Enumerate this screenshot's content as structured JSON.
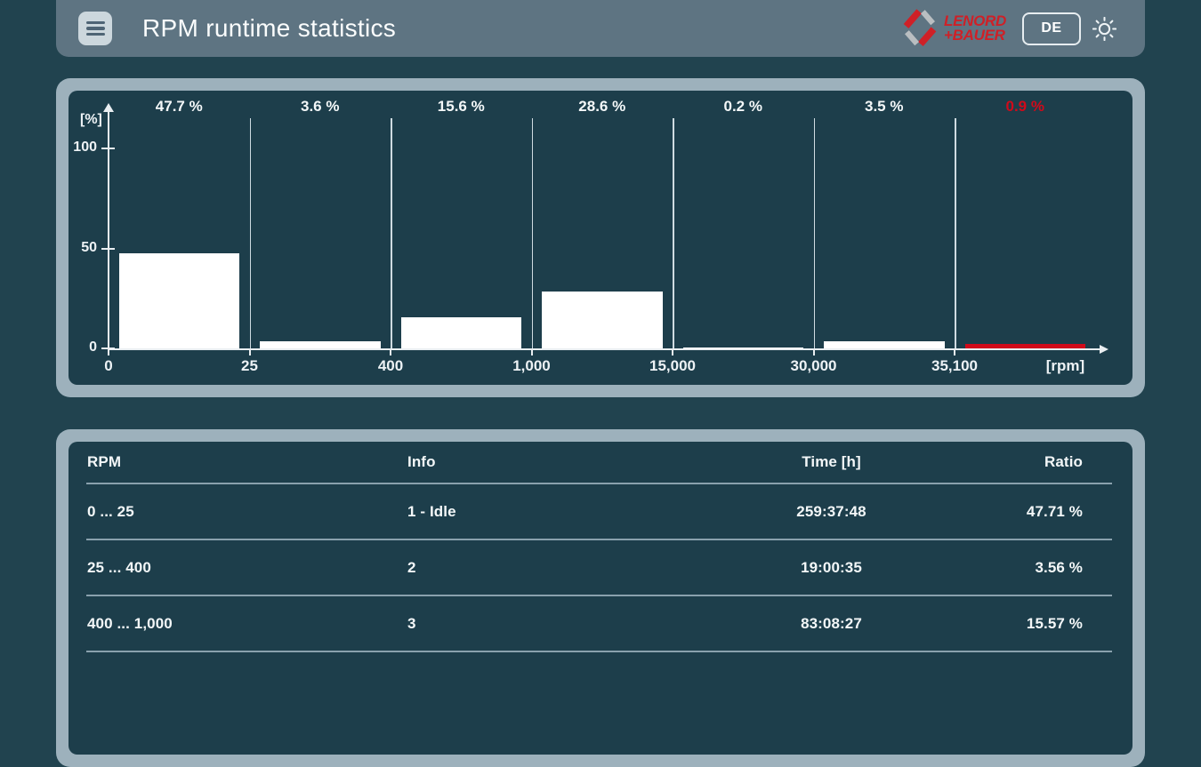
{
  "header": {
    "title": "RPM runtime statistics",
    "language_button": "DE",
    "logo_line1": "LENORD",
    "logo_line2": "+BAUER"
  },
  "colors": {
    "page_bg": "#21434f",
    "header_bar": "#5e7482",
    "panel_border": "#9db1bc",
    "panel_inner": "#1d3e4b",
    "bar_color": "#ffffff",
    "overrange_red": "#d10a1a",
    "logo_red": "#cf2027",
    "logo_gray": "#b9bec1",
    "axis_color": "#e9eef1",
    "divider_color": "#8aa1ad"
  },
  "chart_data": {
    "type": "bar",
    "title": "",
    "ylabel": "[%]",
    "xlabel": "[rpm]",
    "yticks": [
      0,
      50,
      100
    ],
    "ylim": [
      0,
      120
    ],
    "grid": false,
    "legend": "none",
    "bin_edges": [
      "0",
      "25",
      "400",
      "1,000",
      "15,000",
      "30,000",
      "35,100"
    ],
    "categories": [
      "0-25",
      "25-400",
      "400-1,000",
      "1,000-15,000",
      "15,000-30,000",
      "30,000-35,100",
      ">35,100"
    ],
    "values": [
      47.7,
      3.6,
      15.6,
      28.6,
      0.2,
      3.5,
      0.9
    ],
    "bar_labels": [
      "47.7 %",
      "3.6 %",
      "15.6 %",
      "28.6 %",
      "0.2 %",
      "3.5 %",
      "0.9 %"
    ],
    "overrange_last": true
  },
  "table": {
    "columns": [
      {
        "label": "RPM",
        "align": "left"
      },
      {
        "label": "Info",
        "align": "left"
      },
      {
        "label": "Time [h]",
        "align": "center"
      },
      {
        "label": "Ratio",
        "align": "right"
      }
    ],
    "rows": [
      [
        "0 ... 25",
        "1 - Idle",
        "259:37:48",
        "47.71 %"
      ],
      [
        "25 ... 400",
        "2",
        "19:00:35",
        "3.56 %"
      ],
      [
        "400 ... 1,000",
        "3",
        "83:08:27",
        "15.57 %"
      ]
    ]
  }
}
